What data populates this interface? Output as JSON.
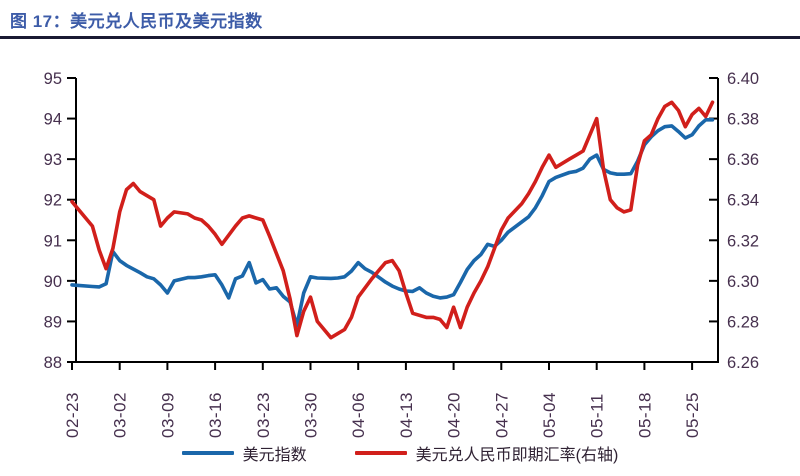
{
  "figure": {
    "title": "图 17：美元兑人民币及美元指数"
  },
  "colors": {
    "title": "#3d5ca8",
    "title_rule": "#191932",
    "axis": "#000000",
    "tick_label": "#46304e",
    "usd_index_line": "#1a67aa",
    "usdcny_line": "#d11f1b",
    "legend_text": "#2f2233",
    "background": "#ffffff"
  },
  "chart_data": {
    "type": "line",
    "title": "美元兑人民币及美元指数",
    "grid": false,
    "legend_position": "bottom",
    "x_axis": {
      "tick_labels": [
        "02-23",
        "03-02",
        "03-09",
        "03-16",
        "03-23",
        "03-30",
        "04-06",
        "04-13",
        "04-20",
        "04-27",
        "05-04",
        "05-11",
        "05-18",
        "05-25"
      ],
      "label_rotation_deg": -90
    },
    "y_left": {
      "ticks": [
        95,
        94,
        93,
        92,
        91,
        90,
        89,
        88
      ],
      "range": [
        88,
        95
      ],
      "series_name": "美元指数"
    },
    "y_right": {
      "ticks": [
        "6.40",
        "6.38",
        "6.36",
        "6.34",
        "6.32",
        "6.30",
        "6.28",
        "6.26"
      ],
      "range": [
        6.26,
        6.4
      ],
      "series_name": "美元兑人民币即期汇率"
    },
    "legend": [
      {
        "label": "美元指数",
        "color": "#1a67aa"
      },
      {
        "label": "美元兑人民币即期汇率(右轴)",
        "color": "#d11f1b"
      }
    ],
    "series": [
      {
        "name": "美元指数",
        "axis": "left",
        "color": "#1a67aa",
        "points": [
          [
            "02-23",
            89.9
          ],
          [
            "02-26",
            89.86
          ],
          [
            "02-27",
            89.85
          ],
          [
            "02-28",
            89.93
          ],
          [
            "03-01",
            90.72
          ],
          [
            "03-02",
            90.5
          ],
          [
            "03-03",
            90.38
          ],
          [
            "03-05",
            90.2
          ],
          [
            "03-06",
            90.1
          ],
          [
            "03-07",
            90.05
          ],
          [
            "03-08",
            89.9
          ],
          [
            "03-09",
            89.7
          ],
          [
            "03-10",
            90.0
          ],
          [
            "03-12",
            90.08
          ],
          [
            "03-13",
            90.08
          ],
          [
            "03-14",
            90.1
          ],
          [
            "03-15",
            90.13
          ],
          [
            "03-16",
            90.15
          ],
          [
            "03-17",
            89.9
          ],
          [
            "03-18",
            89.58
          ],
          [
            "03-19",
            90.05
          ],
          [
            "03-20",
            90.12
          ],
          [
            "03-21",
            90.45
          ],
          [
            "03-22",
            89.95
          ],
          [
            "03-23",
            90.03
          ],
          [
            "03-24",
            89.8
          ],
          [
            "03-25",
            89.83
          ],
          [
            "03-26",
            89.62
          ],
          [
            "03-27",
            89.48
          ],
          [
            "03-28",
            88.9
          ],
          [
            "03-29",
            89.7
          ],
          [
            "03-30",
            90.1
          ],
          [
            "03-31",
            90.07
          ],
          [
            "04-02",
            90.06
          ],
          [
            "04-03",
            90.07
          ],
          [
            "04-04",
            90.1
          ],
          [
            "04-05",
            90.24
          ],
          [
            "04-06",
            90.45
          ],
          [
            "04-07",
            90.3
          ],
          [
            "04-08",
            90.21
          ],
          [
            "04-10",
            89.97
          ],
          [
            "04-11",
            89.87
          ],
          [
            "04-12",
            89.8
          ],
          [
            "04-13",
            89.75
          ],
          [
            "04-14",
            89.74
          ],
          [
            "04-15",
            89.83
          ],
          [
            "04-16",
            89.7
          ],
          [
            "04-17",
            89.62
          ],
          [
            "04-18",
            89.58
          ],
          [
            "04-19",
            89.6
          ],
          [
            "04-20",
            89.66
          ],
          [
            "04-21",
            89.96
          ],
          [
            "04-22",
            90.28
          ],
          [
            "04-23",
            90.5
          ],
          [
            "04-24",
            90.65
          ],
          [
            "04-25",
            90.9
          ],
          [
            "04-26",
            90.85
          ],
          [
            "04-27",
            91.0
          ],
          [
            "04-28",
            91.2
          ],
          [
            "04-30",
            91.45
          ],
          [
            "05-01",
            91.58
          ],
          [
            "05-02",
            91.8
          ],
          [
            "05-03",
            92.1
          ],
          [
            "05-04",
            92.45
          ],
          [
            "05-05",
            92.55
          ],
          [
            "05-07",
            92.67
          ],
          [
            "05-08",
            92.7
          ],
          [
            "05-09",
            92.78
          ],
          [
            "05-10",
            93.0
          ],
          [
            "05-11",
            93.1
          ],
          [
            "05-12",
            92.75
          ],
          [
            "05-13",
            92.66
          ],
          [
            "05-14",
            92.63
          ],
          [
            "05-15",
            92.63
          ],
          [
            "05-16",
            92.64
          ],
          [
            "05-17",
            92.95
          ],
          [
            "05-18",
            93.35
          ],
          [
            "05-19",
            93.55
          ],
          [
            "05-20",
            93.7
          ],
          [
            "05-21",
            93.8
          ],
          [
            "05-22",
            93.82
          ],
          [
            "05-23",
            93.68
          ],
          [
            "05-24",
            93.52
          ],
          [
            "05-25",
            93.6
          ],
          [
            "05-26",
            93.82
          ],
          [
            "05-27",
            93.97
          ],
          [
            "05-28",
            93.97
          ]
        ]
      },
      {
        "name": "美元兑人民币即期汇率(右轴)",
        "axis": "right",
        "color": "#d11f1b",
        "points": [
          [
            "02-23",
            6.339
          ],
          [
            "02-26",
            6.327
          ],
          [
            "02-27",
            6.315
          ],
          [
            "02-28",
            6.306
          ],
          [
            "03-01",
            6.316
          ],
          [
            "03-02",
            6.334
          ],
          [
            "03-03",
            6.345
          ],
          [
            "03-04",
            6.348
          ],
          [
            "03-05",
            6.344
          ],
          [
            "03-06",
            6.342
          ],
          [
            "03-07",
            6.34
          ],
          [
            "03-08",
            6.327
          ],
          [
            "03-09",
            6.331
          ],
          [
            "03-10",
            6.334
          ],
          [
            "03-12",
            6.333
          ],
          [
            "03-13",
            6.331
          ],
          [
            "03-14",
            6.33
          ],
          [
            "03-15",
            6.327
          ],
          [
            "03-16",
            6.323
          ],
          [
            "03-17",
            6.318
          ],
          [
            "03-19",
            6.327
          ],
          [
            "03-20",
            6.331
          ],
          [
            "03-21",
            6.332
          ],
          [
            "03-22",
            6.331
          ],
          [
            "03-23",
            6.33
          ],
          [
            "03-24",
            6.322
          ],
          [
            "03-26",
            6.305
          ],
          [
            "03-27",
            6.291
          ],
          [
            "03-28",
            6.273
          ],
          [
            "03-29",
            6.285
          ],
          [
            "03-30",
            6.292
          ],
          [
            "03-31",
            6.28
          ],
          [
            "04-02",
            6.272
          ],
          [
            "04-03",
            6.274
          ],
          [
            "04-04",
            6.276
          ],
          [
            "04-05",
            6.282
          ],
          [
            "04-06",
            6.292
          ],
          [
            "04-08",
            6.301
          ],
          [
            "04-09",
            6.305
          ],
          [
            "04-10",
            6.309
          ],
          [
            "04-11",
            6.31
          ],
          [
            "04-12",
            6.305
          ],
          [
            "04-13",
            6.294
          ],
          [
            "04-14",
            6.284
          ],
          [
            "04-16",
            6.282
          ],
          [
            "04-17",
            6.282
          ],
          [
            "04-18",
            6.281
          ],
          [
            "04-19",
            6.277
          ],
          [
            "04-20",
            6.287
          ],
          [
            "04-21",
            6.277
          ],
          [
            "04-22",
            6.287
          ],
          [
            "04-23",
            6.294
          ],
          [
            "04-24",
            6.3
          ],
          [
            "04-25",
            6.307
          ],
          [
            "04-26",
            6.316
          ],
          [
            "04-27",
            6.325
          ],
          [
            "04-28",
            6.331
          ],
          [
            "04-30",
            6.338
          ],
          [
            "05-01",
            6.343
          ],
          [
            "05-02",
            6.349
          ],
          [
            "05-03",
            6.356
          ],
          [
            "05-04",
            6.362
          ],
          [
            "05-05",
            6.356
          ],
          [
            "05-07",
            6.36
          ],
          [
            "05-08",
            6.362
          ],
          [
            "05-09",
            6.364
          ],
          [
            "05-10",
            6.372
          ],
          [
            "05-11",
            6.38
          ],
          [
            "05-12",
            6.355
          ],
          [
            "05-13",
            6.34
          ],
          [
            "05-14",
            6.336
          ],
          [
            "05-15",
            6.334
          ],
          [
            "05-16",
            6.335
          ],
          [
            "05-17",
            6.357
          ],
          [
            "05-18",
            6.369
          ],
          [
            "05-19",
            6.372
          ],
          [
            "05-20",
            6.38
          ],
          [
            "05-21",
            6.386
          ],
          [
            "05-22",
            6.388
          ],
          [
            "05-23",
            6.384
          ],
          [
            "05-24",
            6.376
          ],
          [
            "05-25",
            6.382
          ],
          [
            "05-26",
            6.385
          ],
          [
            "05-27",
            6.381
          ],
          [
            "05-28",
            6.388
          ]
        ]
      }
    ]
  }
}
